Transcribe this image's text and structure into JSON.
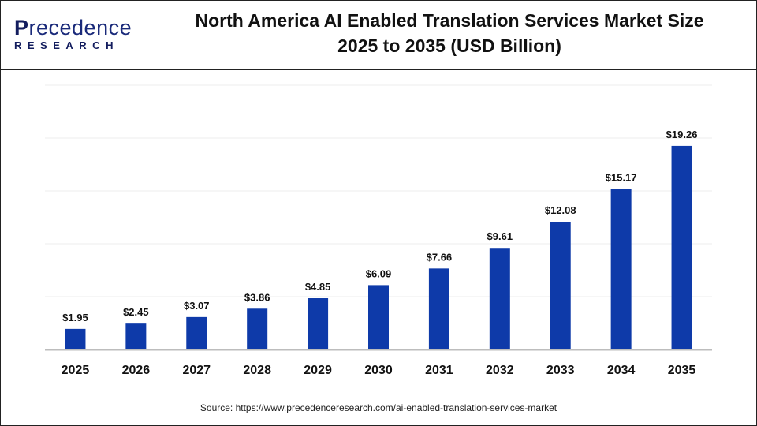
{
  "logo": {
    "main": "recedence",
    "initial": "P",
    "sub": "RESEARCH"
  },
  "chart_data": {
    "type": "bar",
    "title": "North America AI Enabled Translation Services Market Size 2025 to 2035 (USD Billion)",
    "title_line1": "North America AI Enabled Translation Services Market Size",
    "title_line2": "2025 to 2035 (USD Billion)",
    "categories": [
      "2025",
      "2026",
      "2027",
      "2028",
      "2029",
      "2030",
      "2031",
      "2032",
      "2033",
      "2034",
      "2035"
    ],
    "values": [
      1.95,
      2.45,
      3.07,
      3.86,
      4.85,
      6.09,
      7.66,
      9.61,
      12.08,
      15.17,
      19.26
    ],
    "data_labels": [
      "$1.95",
      "$2.45",
      "$3.07",
      "$3.86",
      "$4.85",
      "$6.09",
      "$7.66",
      "$9.61",
      "$12.08",
      "$15.17",
      "$19.26"
    ],
    "xlabel": "",
    "ylabel": "",
    "ylim": [
      0,
      25
    ],
    "grid_step": 5,
    "grid": true,
    "bar_color": "#0e3aa9"
  },
  "source": "Source: https://www.precedenceresearch.com/ai-enabled-translation-services-market"
}
